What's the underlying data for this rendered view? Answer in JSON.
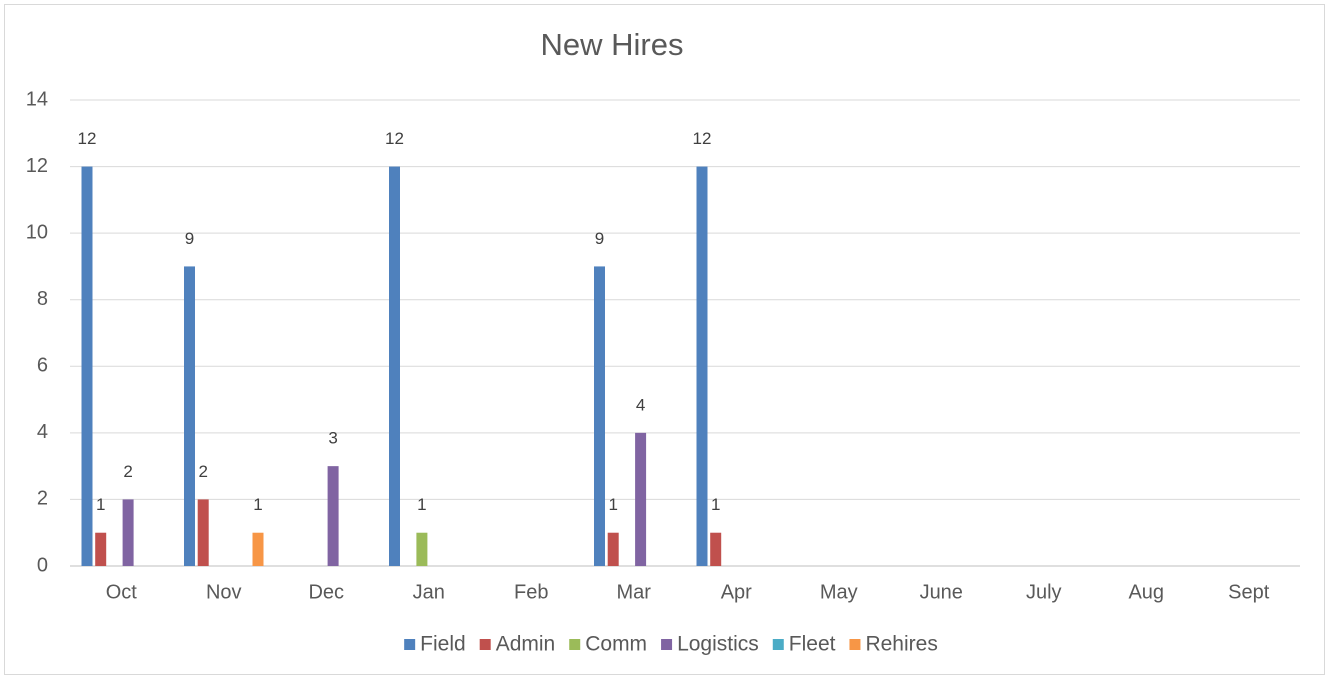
{
  "chart_data": {
    "type": "bar",
    "title": "New Hires",
    "categories": [
      "Oct",
      "Nov",
      "Dec",
      "Jan",
      "Feb",
      "Mar",
      "Apr",
      "May",
      "June",
      "July",
      "Aug",
      "Sept"
    ],
    "series": [
      {
        "name": "Field",
        "color": "#4f81bd",
        "values": [
          12,
          9,
          null,
          12,
          null,
          9,
          12,
          null,
          null,
          null,
          null,
          null
        ]
      },
      {
        "name": "Admin",
        "color": "#c0504d",
        "values": [
          1,
          2,
          null,
          null,
          null,
          1,
          1,
          null,
          null,
          null,
          null,
          null
        ]
      },
      {
        "name": "Comm",
        "color": "#9bbb59",
        "values": [
          null,
          null,
          null,
          1,
          null,
          null,
          null,
          null,
          null,
          null,
          null,
          null
        ]
      },
      {
        "name": "Logistics",
        "color": "#8064a2",
        "values": [
          2,
          null,
          3,
          null,
          null,
          4,
          null,
          null,
          null,
          null,
          null,
          null
        ]
      },
      {
        "name": "Fleet",
        "color": "#4bacc6",
        "values": [
          null,
          null,
          null,
          null,
          null,
          null,
          null,
          null,
          null,
          null,
          null,
          null
        ]
      },
      {
        "name": "Rehires",
        "color": "#f79646",
        "values": [
          null,
          1,
          null,
          null,
          null,
          null,
          null,
          null,
          null,
          null,
          null,
          null
        ]
      }
    ],
    "ylim": [
      0,
      14
    ],
    "yticks": [
      0,
      2,
      4,
      6,
      8,
      10,
      12,
      14
    ],
    "grid": true,
    "legend": "bottom",
    "data_labels": true
  }
}
